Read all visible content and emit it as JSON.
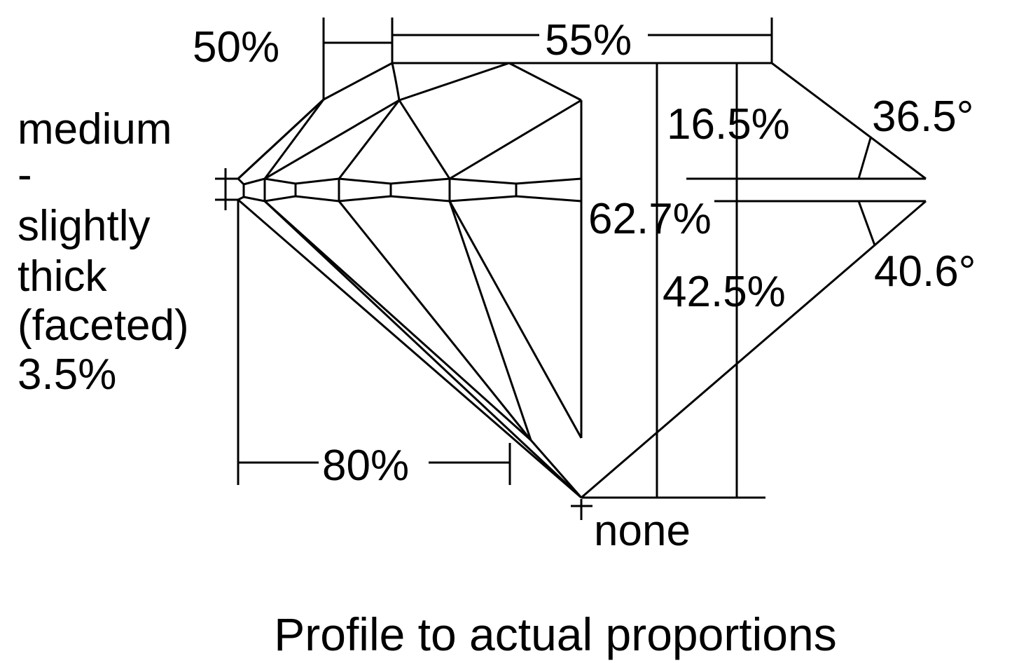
{
  "labels": {
    "star_length": "50%",
    "table": "55%",
    "crown_height": "16.5%",
    "crown_angle": "36.5°",
    "girdle_lines": [
      "medium",
      "-",
      "slightly",
      "thick",
      "(faceted)",
      "3.5%"
    ],
    "total_depth": "62.7%",
    "pavilion_depth": "42.5%",
    "pavilion_angle": "40.6°",
    "lower_half": "80%",
    "culet": "none",
    "caption": "Profile to actual proportions"
  },
  "colors": {
    "line": "#000000",
    "background": "#ffffff"
  }
}
